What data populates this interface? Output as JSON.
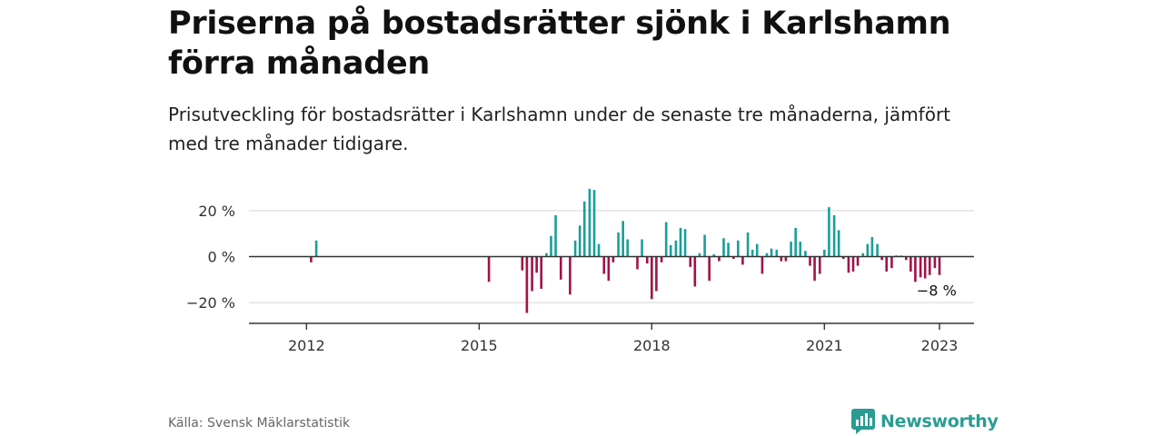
{
  "header": {
    "title": "Priserna på bostadsrätter sjönk i Karlshamn förra månaden",
    "subtitle": "Prisutveckling för bostadsrätter i Karlshamn under de senaste tre månaderna, jämfört med tre månader tidigare."
  },
  "footer": {
    "source": "Källa: Svensk Mäklarstatistik",
    "brand": "Newsworthy"
  },
  "colors": {
    "positive": "#1a9e9a",
    "negative": "#a01346",
    "brand": "#2a9d93",
    "grid": "#dddddd",
    "axis": "#333333"
  },
  "chart_data": {
    "type": "bar",
    "x_unit": "year",
    "y_unit": "percent",
    "ylim": [
      -28,
      28
    ],
    "xlim": [
      2011.0,
      2023.6
    ],
    "x_ticks": [
      2012,
      2015,
      2018,
      2021,
      2023
    ],
    "x_tick_labels": [
      "2012",
      "2015",
      "2018",
      "2021",
      "2023"
    ],
    "y_ticks": [
      20,
      0,
      -20
    ],
    "y_tick_labels": [
      "20 %",
      "0 %",
      "−20 %"
    ],
    "grid": true,
    "annotation": {
      "x": 2022.95,
      "y": -8,
      "text": "−8 %"
    },
    "x": [
      2012.08,
      2012.17,
      2015.17,
      2015.75,
      2015.83,
      2015.92,
      2016.0,
      2016.08,
      2016.17,
      2016.25,
      2016.33,
      2016.42,
      2016.58,
      2016.67,
      2016.75,
      2016.83,
      2016.92,
      2017.0,
      2017.08,
      2017.17,
      2017.25,
      2017.33,
      2017.42,
      2017.5,
      2017.58,
      2017.75,
      2017.83,
      2017.92,
      2018.0,
      2018.08,
      2018.17,
      2018.25,
      2018.33,
      2018.42,
      2018.5,
      2018.58,
      2018.67,
      2018.75,
      2018.83,
      2018.92,
      2019.0,
      2019.08,
      2019.17,
      2019.25,
      2019.33,
      2019.42,
      2019.5,
      2019.58,
      2019.67,
      2019.75,
      2019.83,
      2019.92,
      2020.0,
      2020.08,
      2020.17,
      2020.25,
      2020.33,
      2020.42,
      2020.5,
      2020.58,
      2020.67,
      2020.75,
      2020.83,
      2020.92,
      2021.0,
      2021.08,
      2021.17,
      2021.25,
      2021.33,
      2021.42,
      2021.5,
      2021.58,
      2021.67,
      2021.75,
      2021.83,
      2021.92,
      2022.0,
      2022.08,
      2022.17,
      2022.25,
      2022.33,
      2022.42,
      2022.5,
      2022.58,
      2022.67,
      2022.75,
      2022.83,
      2022.92,
      2023.0
    ],
    "values": [
      -2.5,
      7.0,
      -11.0,
      -6.0,
      -24.5,
      -15.0,
      -7.0,
      -14.0,
      1.5,
      9.0,
      18.0,
      -10.0,
      -16.5,
      7.0,
      13.5,
      24.0,
      29.5,
      29.0,
      5.5,
      -7.5,
      -10.5,
      -2.5,
      10.5,
      15.5,
      7.5,
      -5.5,
      7.5,
      -3.0,
      -18.5,
      -15.0,
      -2.5,
      15.0,
      5.0,
      7.0,
      12.5,
      12.0,
      -4.5,
      -13.0,
      1.5,
      9.5,
      -10.5,
      1.0,
      -2.0,
      8.0,
      6.0,
      -1.0,
      7.0,
      -3.5,
      10.5,
      3.0,
      5.5,
      -7.5,
      1.5,
      3.5,
      3.0,
      -2.0,
      -2.0,
      6.5,
      12.5,
      6.5,
      2.5,
      -4.0,
      -10.5,
      -7.5,
      3.0,
      21.5,
      18.0,
      11.5,
      -1.0,
      -7.0,
      -6.5,
      -4.0,
      1.5,
      5.5,
      8.5,
      5.5,
      -1.5,
      -6.5,
      -5.0,
      0.5,
      0.5,
      -1.5,
      -6.5,
      -11.0,
      -9.0,
      -9.5,
      -8.0,
      -5.0,
      -8.0
    ]
  }
}
